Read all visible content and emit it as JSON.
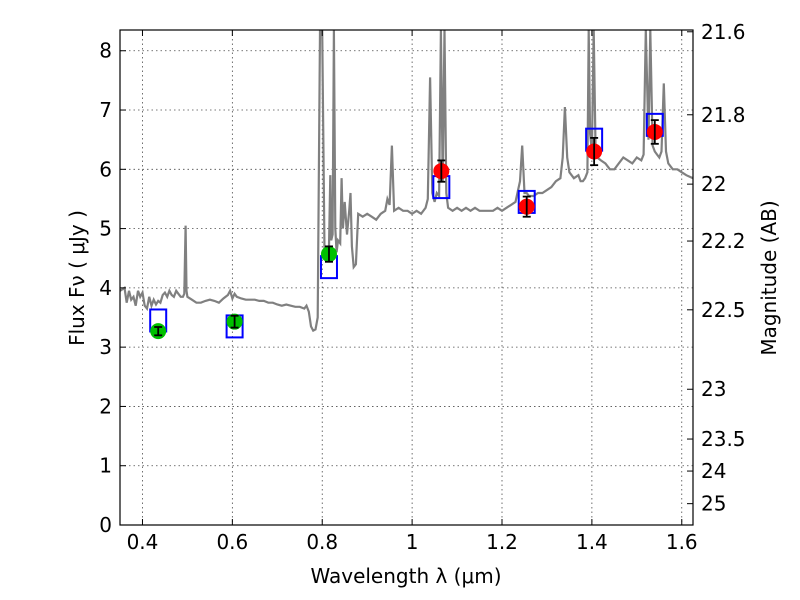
{
  "chart_data": {
    "type": "scatter",
    "title": "",
    "xlabel": "Wavelength  λ (μm)",
    "ylabel": "Flux  Fν  ( μJy )",
    "y2label": "Magnitude (AB)",
    "xlim": [
      0.35,
      1.625
    ],
    "ylim": [
      0,
      8.35
    ],
    "xticks": [
      0.4,
      0.6,
      0.8,
      1.0,
      1.2,
      1.4,
      1.6
    ],
    "xtick_labels": [
      "0.4",
      "0.6",
      "0.8",
      "1",
      "1.2",
      "1.4",
      "1.6"
    ],
    "yticks": [
      0,
      1,
      2,
      3,
      4,
      5,
      6,
      7,
      8
    ],
    "ytick_labels": [
      "0",
      "1",
      "2",
      "3",
      "4",
      "5",
      "6",
      "7",
      "8"
    ],
    "y2ticks": [
      {
        "flux": 8.32,
        "label": "21.6"
      },
      {
        "flux": 6.92,
        "label": "21.8"
      },
      {
        "flux": 5.75,
        "label": "22"
      },
      {
        "flux": 4.79,
        "label": "22.2"
      },
      {
        "flux": 3.63,
        "label": "22.5"
      },
      {
        "flux": 2.29,
        "label": "23"
      },
      {
        "flux": 1.45,
        "label": "23.5"
      },
      {
        "flux": 0.91,
        "label": "24"
      },
      {
        "flux": 0.36,
        "label": "25"
      }
    ],
    "grid": true,
    "colors": {
      "spectrum": "#808080",
      "model": "#0000ff",
      "optical": "#00c000",
      "nir": "#ff0000",
      "errorbar": "#000000"
    },
    "spectrum": [
      [
        0.35,
        3.95
      ],
      [
        0.36,
        4.0
      ],
      [
        0.365,
        3.75
      ],
      [
        0.37,
        3.95
      ],
      [
        0.375,
        3.8
      ],
      [
        0.38,
        3.85
      ],
      [
        0.385,
        3.7
      ],
      [
        0.39,
        3.95
      ],
      [
        0.395,
        3.85
      ],
      [
        0.4,
        3.92
      ],
      [
        0.405,
        3.7
      ],
      [
        0.41,
        3.65
      ],
      [
        0.415,
        3.85
      ],
      [
        0.42,
        3.7
      ],
      [
        0.425,
        3.8
      ],
      [
        0.43,
        3.72
      ],
      [
        0.435,
        3.78
      ],
      [
        0.44,
        3.75
      ],
      [
        0.445,
        3.88
      ],
      [
        0.45,
        3.92
      ],
      [
        0.455,
        3.85
      ],
      [
        0.46,
        3.95
      ],
      [
        0.465,
        3.88
      ],
      [
        0.47,
        3.85
      ],
      [
        0.475,
        3.95
      ],
      [
        0.48,
        3.9
      ],
      [
        0.485,
        3.85
      ],
      [
        0.49,
        3.85
      ],
      [
        0.493,
        3.9
      ],
      [
        0.496,
        5.05
      ],
      [
        0.498,
        3.95
      ],
      [
        0.5,
        3.85
      ],
      [
        0.51,
        3.8
      ],
      [
        0.52,
        3.75
      ],
      [
        0.53,
        3.75
      ],
      [
        0.54,
        3.78
      ],
      [
        0.55,
        3.8
      ],
      [
        0.56,
        3.78
      ],
      [
        0.57,
        3.75
      ],
      [
        0.58,
        3.82
      ],
      [
        0.59,
        3.88
      ],
      [
        0.595,
        3.95
      ],
      [
        0.6,
        3.82
      ],
      [
        0.605,
        3.9
      ],
      [
        0.61,
        3.85
      ],
      [
        0.62,
        3.82
      ],
      [
        0.63,
        3.8
      ],
      [
        0.64,
        3.8
      ],
      [
        0.65,
        3.8
      ],
      [
        0.66,
        3.78
      ],
      [
        0.67,
        3.78
      ],
      [
        0.68,
        3.75
      ],
      [
        0.69,
        3.75
      ],
      [
        0.7,
        3.72
      ],
      [
        0.71,
        3.7
      ],
      [
        0.72,
        3.72
      ],
      [
        0.73,
        3.7
      ],
      [
        0.74,
        3.68
      ],
      [
        0.75,
        3.68
      ],
      [
        0.76,
        3.65
      ],
      [
        0.765,
        3.7
      ],
      [
        0.77,
        3.6
      ],
      [
        0.775,
        3.35
      ],
      [
        0.78,
        3.28
      ],
      [
        0.785,
        3.3
      ],
      [
        0.79,
        3.5
      ],
      [
        0.795,
        8.35
      ],
      [
        0.8,
        8.35
      ],
      [
        0.805,
        4.6
      ],
      [
        0.81,
        4.55
      ],
      [
        0.815,
        4.7
      ],
      [
        0.818,
        5.9
      ],
      [
        0.82,
        4.8
      ],
      [
        0.823,
        4.9
      ],
      [
        0.826,
        8.35
      ],
      [
        0.829,
        5.0
      ],
      [
        0.832,
        4.6
      ],
      [
        0.835,
        4.8
      ],
      [
        0.84,
        4.75
      ],
      [
        0.843,
        5.85
      ],
      [
        0.846,
        5.0
      ],
      [
        0.85,
        5.45
      ],
      [
        0.855,
        4.9
      ],
      [
        0.86,
        5.3
      ],
      [
        0.863,
        5.6
      ],
      [
        0.866,
        4.7
      ],
      [
        0.87,
        4.35
      ],
      [
        0.875,
        4.4
      ],
      [
        0.88,
        5.25
      ],
      [
        0.89,
        5.2
      ],
      [
        0.9,
        5.25
      ],
      [
        0.91,
        5.2
      ],
      [
        0.92,
        5.15
      ],
      [
        0.93,
        5.25
      ],
      [
        0.94,
        5.3
      ],
      [
        0.945,
        5.5
      ],
      [
        0.95,
        5.4
      ],
      [
        0.955,
        6.4
      ],
      [
        0.96,
        5.3
      ],
      [
        0.97,
        5.35
      ],
      [
        0.98,
        5.3
      ],
      [
        0.99,
        5.3
      ],
      [
        1.0,
        5.25
      ],
      [
        1.01,
        5.3
      ],
      [
        1.02,
        5.25
      ],
      [
        1.03,
        5.35
      ],
      [
        1.035,
        5.5
      ],
      [
        1.04,
        7.55
      ],
      [
        1.045,
        5.6
      ],
      [
        1.05,
        5.45
      ],
      [
        1.055,
        5.6
      ],
      [
        1.06,
        5.55
      ],
      [
        1.064,
        8.35
      ],
      [
        1.068,
        5.8
      ],
      [
        1.072,
        8.35
      ],
      [
        1.076,
        5.6
      ],
      [
        1.08,
        5.35
      ],
      [
        1.09,
        5.3
      ],
      [
        1.1,
        5.35
      ],
      [
        1.11,
        5.3
      ],
      [
        1.12,
        5.35
      ],
      [
        1.13,
        5.3
      ],
      [
        1.14,
        5.35
      ],
      [
        1.15,
        5.3
      ],
      [
        1.16,
        5.3
      ],
      [
        1.17,
        5.3
      ],
      [
        1.18,
        5.3
      ],
      [
        1.19,
        5.35
      ],
      [
        1.2,
        5.3
      ],
      [
        1.21,
        5.35
      ],
      [
        1.22,
        5.4
      ],
      [
        1.23,
        5.45
      ],
      [
        1.24,
        5.8
      ],
      [
        1.245,
        6.4
      ],
      [
        1.25,
        5.6
      ],
      [
        1.255,
        5.6
      ],
      [
        1.26,
        5.55
      ],
      [
        1.27,
        5.55
      ],
      [
        1.28,
        5.6
      ],
      [
        1.29,
        5.6
      ],
      [
        1.3,
        5.65
      ],
      [
        1.31,
        5.7
      ],
      [
        1.32,
        5.8
      ],
      [
        1.33,
        5.85
      ],
      [
        1.335,
        6.2
      ],
      [
        1.34,
        7.05
      ],
      [
        1.345,
        6.2
      ],
      [
        1.35,
        5.95
      ],
      [
        1.36,
        5.85
      ],
      [
        1.37,
        5.9
      ],
      [
        1.375,
        5.8
      ],
      [
        1.38,
        5.8
      ],
      [
        1.385,
        5.85
      ],
      [
        1.39,
        5.95
      ],
      [
        1.393,
        8.35
      ],
      [
        1.396,
        6.6
      ],
      [
        1.4,
        6.3
      ],
      [
        1.404,
        8.35
      ],
      [
        1.408,
        6.4
      ],
      [
        1.412,
        6.2
      ],
      [
        1.42,
        6.15
      ],
      [
        1.43,
        6.1
      ],
      [
        1.44,
        6.0
      ],
      [
        1.45,
        6.0
      ],
      [
        1.46,
        6.1
      ],
      [
        1.47,
        6.2
      ],
      [
        1.48,
        6.15
      ],
      [
        1.49,
        6.1
      ],
      [
        1.5,
        6.2
      ],
      [
        1.51,
        6.15
      ],
      [
        1.515,
        6.25
      ],
      [
        1.52,
        8.35
      ],
      [
        1.526,
        6.5
      ],
      [
        1.53,
        8.35
      ],
      [
        1.535,
        6.4
      ],
      [
        1.54,
        6.3
      ],
      [
        1.545,
        6.25
      ],
      [
        1.55,
        6.2
      ],
      [
        1.555,
        6.3
      ],
      [
        1.56,
        7.45
      ],
      [
        1.565,
        6.3
      ],
      [
        1.57,
        6.1
      ],
      [
        1.58,
        6.0
      ],
      [
        1.59,
        6.0
      ],
      [
        1.6,
        5.95
      ],
      [
        1.61,
        5.9
      ],
      [
        1.625,
        5.85
      ]
    ],
    "model_points": [
      {
        "x": 0.435,
        "y": 3.45
      },
      {
        "x": 0.605,
        "y": 3.35
      },
      {
        "x": 0.815,
        "y": 4.35
      },
      {
        "x": 1.065,
        "y": 5.7
      },
      {
        "x": 1.255,
        "y": 5.45
      },
      {
        "x": 1.405,
        "y": 6.5
      },
      {
        "x": 1.54,
        "y": 6.75
      }
    ],
    "series": [
      {
        "color": "#00c000",
        "points": [
          {
            "x": 0.435,
            "y": 3.27,
            "err": 0.07
          },
          {
            "x": 0.605,
            "y": 3.43,
            "err": 0.1
          },
          {
            "x": 0.815,
            "y": 4.57,
            "err": 0.13
          }
        ]
      },
      {
        "color": "#ff0000",
        "points": [
          {
            "x": 1.065,
            "y": 5.97,
            "err": 0.18
          },
          {
            "x": 1.255,
            "y": 5.37,
            "err": 0.17
          },
          {
            "x": 1.405,
            "y": 6.3,
            "err": 0.23
          },
          {
            "x": 1.54,
            "y": 6.63,
            "err": 0.2
          }
        ]
      }
    ]
  }
}
